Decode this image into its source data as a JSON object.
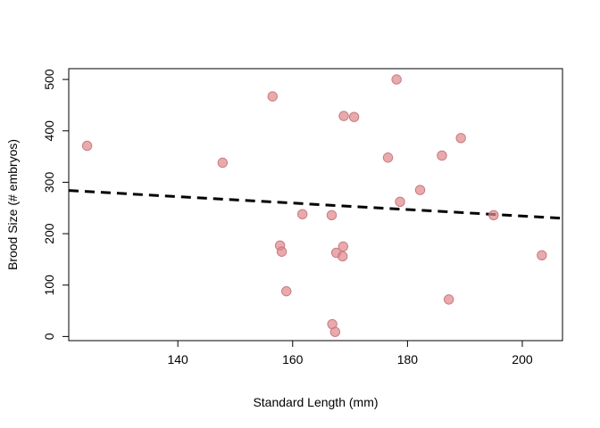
{
  "chart_data": {
    "type": "scatter",
    "title": "",
    "xlabel": "Standard Length (mm)",
    "ylabel": "Brood Size (# embryos)",
    "xlim": [
      121,
      207
    ],
    "ylim": [
      -8,
      521
    ],
    "x_ticks": [
      140,
      160,
      180,
      200
    ],
    "y_ticks": [
      0,
      100,
      200,
      300,
      400,
      500
    ],
    "grid": false,
    "point_color": "#e0898d",
    "point_stroke": "#c97b80",
    "line_color": "#000000",
    "points": [
      {
        "x": 124.2,
        "y": 371
      },
      {
        "x": 147.8,
        "y": 338
      },
      {
        "x": 156.5,
        "y": 467
      },
      {
        "x": 157.8,
        "y": 177
      },
      {
        "x": 158.1,
        "y": 165
      },
      {
        "x": 158.9,
        "y": 88
      },
      {
        "x": 161.7,
        "y": 238
      },
      {
        "x": 166.8,
        "y": 236
      },
      {
        "x": 166.9,
        "y": 24
      },
      {
        "x": 167.4,
        "y": 9
      },
      {
        "x": 167.6,
        "y": 163
      },
      {
        "x": 168.7,
        "y": 156
      },
      {
        "x": 168.8,
        "y": 175
      },
      {
        "x": 168.9,
        "y": 429
      },
      {
        "x": 170.7,
        "y": 427
      },
      {
        "x": 176.6,
        "y": 348
      },
      {
        "x": 178.1,
        "y": 500
      },
      {
        "x": 178.7,
        "y": 262
      },
      {
        "x": 182.2,
        "y": 285
      },
      {
        "x": 186.0,
        "y": 352
      },
      {
        "x": 187.2,
        "y": 72
      },
      {
        "x": 189.3,
        "y": 386
      },
      {
        "x": 195.0,
        "y": 236
      },
      {
        "x": 203.4,
        "y": 158
      }
    ],
    "trend_line": {
      "style": "dashed",
      "points": [
        {
          "x": 121,
          "y": 284
        },
        {
          "x": 207,
          "y": 230
        }
      ]
    }
  }
}
